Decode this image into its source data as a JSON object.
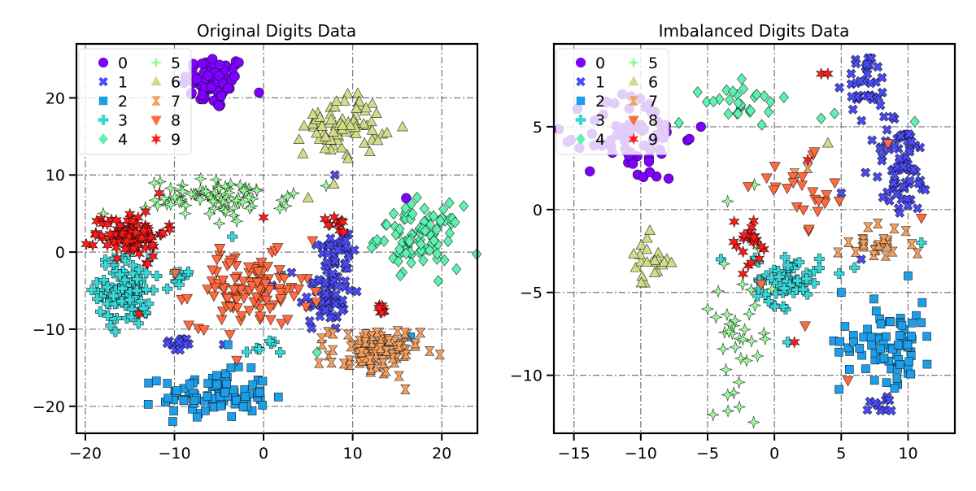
{
  "chart_data": [
    {
      "type": "scatter",
      "title": "Original Digits Data",
      "xlabel": "",
      "ylabel": "",
      "xlim": [
        -21,
        24
      ],
      "ylim": [
        -23.5,
        27
      ],
      "xticks": [
        -20,
        -10,
        0,
        10,
        20
      ],
      "yticks": [
        -20,
        -10,
        0,
        10,
        20
      ],
      "xtick_labels": [
        "−20",
        "−10",
        "0",
        "10",
        "20"
      ],
      "ytick_labels": [
        "−20",
        "−10",
        "0",
        "10",
        "20"
      ],
      "grid": true,
      "legend": {
        "placement": "top-left",
        "columns": 2
      },
      "series": [
        {
          "name": "0",
          "marker": "circle",
          "color": "#7f00ff",
          "clusters": [
            {
              "x": -5.5,
              "y": 22.0,
              "sx": 1.8,
              "sy": 1.8,
              "n": 70
            }
          ],
          "points": [
            [
              16,
              7
            ]
          ]
        },
        {
          "name": "1",
          "marker": "x",
          "color": "#4b4bf4",
          "clusters": [
            {
              "x": 7.0,
              "y": -5.5,
              "sx": 1.5,
              "sy": 2.5,
              "n": 60
            },
            {
              "x": 8.5,
              "y": 0.5,
              "sx": 1.2,
              "sy": 1.5,
              "n": 30
            },
            {
              "x": -9.5,
              "y": -12.0,
              "sx": 0.8,
              "sy": 0.5,
              "n": 12
            }
          ],
          "points": [
            [
              8,
              10
            ],
            [
              -4.5,
              -12
            ]
          ]
        },
        {
          "name": "2",
          "marker": "square",
          "color": "#1e9ee8",
          "clusters": [
            {
              "x": -5.5,
              "y": -18.5,
              "sx": 3.0,
              "sy": 1.5,
              "n": 90
            }
          ],
          "points": [
            [
              2,
              -3
            ],
            [
              16.5,
              -11
            ],
            [
              -4,
              -12
            ]
          ]
        },
        {
          "name": "3",
          "marker": "plus",
          "color": "#38d8d8",
          "clusters": [
            {
              "x": -15.5,
              "y": -5.0,
              "sx": 1.5,
              "sy": 2.3,
              "n": 100
            },
            {
              "x": -9.5,
              "y": -3.5,
              "sx": 0.8,
              "sy": 0.7,
              "n": 10
            },
            {
              "x": 0.0,
              "y": -12.5,
              "sx": 1.0,
              "sy": 0.6,
              "n": 8
            }
          ],
          "points": [
            [
              -3.5,
              2
            ]
          ]
        },
        {
          "name": "4",
          "marker": "diamond",
          "color": "#5ef2b0",
          "clusters": [
            {
              "x": 17.5,
              "y": 2.0,
              "sx": 2.3,
              "sy": 2.0,
              "n": 95
            }
          ],
          "points": [
            [
              6,
              -13
            ]
          ]
        },
        {
          "name": "5",
          "marker": "star4",
          "color": "#9cfb9c",
          "clusters": [
            {
              "x": -5.0,
              "y": 7.0,
              "sx": 4.0,
              "sy": 1.2,
              "n": 80
            }
          ],
          "points": [
            [
              -18,
              5
            ],
            [
              -3,
              4
            ]
          ]
        },
        {
          "name": "6",
          "marker": "triangle-up",
          "color": "#d2dc88",
          "clusters": [
            {
              "x": 9.0,
              "y": 16.5,
              "sx": 2.2,
              "sy": 2.0,
              "n": 75
            }
          ],
          "points": [
            [
              5,
              7
            ]
          ]
        },
        {
          "name": "7",
          "marker": "hourglass",
          "color": "#f4a060",
          "clusters": [
            {
              "x": 12.5,
              "y": -13.0,
              "sx": 2.5,
              "sy": 1.6,
              "n": 90
            }
          ],
          "points": [
            [
              13.5,
              -7.5
            ]
          ]
        },
        {
          "name": "8",
          "marker": "triangle-down",
          "color": "#ff6a40",
          "clusters": [
            {
              "x": -1.5,
              "y": -5.0,
              "sx": 3.3,
              "sy": 2.3,
              "n": 110
            }
          ],
          "points": [
            [
              5.5,
              1.5
            ],
            [
              -3,
              -14
            ]
          ]
        },
        {
          "name": "9",
          "marker": "star",
          "color": "#ff1a1a",
          "clusters": [
            {
              "x": -15.0,
              "y": 2.5,
              "sx": 2.0,
              "sy": 1.5,
              "n": 90
            },
            {
              "x": 8.5,
              "y": 3.5,
              "sx": 0.7,
              "sy": 0.6,
              "n": 10
            },
            {
              "x": 13.0,
              "y": -7.5,
              "sx": 0.4,
              "sy": 0.4,
              "n": 6
            }
          ],
          "points": [
            [
              0,
              4.5
            ],
            [
              -13,
              -1.5
            ],
            [
              -14,
              -8
            ]
          ]
        }
      ]
    },
    {
      "type": "scatter",
      "title": "Imbalanced Digits Data",
      "xlabel": "",
      "ylabel": "",
      "xlim": [
        -16.5,
        13.5
      ],
      "ylim": [
        -13.5,
        10
      ],
      "xticks": [
        -15,
        -10,
        -5,
        0,
        5,
        10
      ],
      "yticks": [
        -10,
        -5,
        0,
        5
      ],
      "xtick_labels": [
        "−15",
        "−10",
        "−5",
        "0",
        "5",
        "10"
      ],
      "ytick_labels": [
        "−10",
        "−5",
        "0",
        "5"
      ],
      "grid": true,
      "legend": {
        "placement": "top-left",
        "columns": 2
      },
      "series": [
        {
          "name": "0",
          "marker": "circle",
          "color": "#7f00ff",
          "clusters": [
            {
              "x": -10.5,
              "y": 4.5,
              "sx": 1.8,
              "sy": 1.4,
              "n": 75
            }
          ],
          "points": [
            [
              -5.5,
              5
            ]
          ]
        },
        {
          "name": "1",
          "marker": "x",
          "color": "#4b4bf4",
          "clusters": [
            {
              "x": 9.5,
              "y": 2.5,
              "sx": 1.1,
              "sy": 1.5,
              "n": 70
            },
            {
              "x": 7.0,
              "y": 7.5,
              "sx": 0.8,
              "sy": 1.0,
              "n": 35
            },
            {
              "x": 8.0,
              "y": -11.8,
              "sx": 0.6,
              "sy": 0.3,
              "n": 10
            }
          ],
          "points": [
            [
              5,
              1
            ],
            [
              6.5,
              -3
            ]
          ]
        },
        {
          "name": "2",
          "marker": "square",
          "color": "#1e9ee8",
          "clusters": [
            {
              "x": 8.5,
              "y": -8.0,
              "sx": 1.8,
              "sy": 1.2,
              "n": 75
            }
          ],
          "points": [
            [
              10,
              -4
            ],
            [
              5,
              -5
            ]
          ]
        },
        {
          "name": "3",
          "marker": "plus",
          "color": "#38d8d8",
          "clusters": [
            {
              "x": 1.0,
              "y": -4.2,
              "sx": 1.2,
              "sy": 0.8,
              "n": 60
            }
          ],
          "points": [
            [
              1,
              -8
            ],
            [
              -4,
              -3
            ],
            [
              6,
              -3.5
            ],
            [
              11,
              -2
            ]
          ]
        },
        {
          "name": "4",
          "marker": "diamond",
          "color": "#5ef2b0",
          "clusters": [
            {
              "x": -2.0,
              "y": 6.5,
              "sx": 1.6,
              "sy": 0.6,
              "n": 28
            }
          ],
          "points": [
            [
              10.5,
              5.3
            ],
            [
              3.5,
              5.5
            ],
            [
              4.5,
              5.8
            ]
          ]
        },
        {
          "name": "5",
          "marker": "star4",
          "color": "#9cfb9c",
          "clusters": [
            {
              "x": -2.5,
              "y": -7.5,
              "sx": 1.2,
              "sy": 2.0,
              "n": 35
            }
          ],
          "points": [
            [
              -3.5,
              0.5
            ],
            [
              -1.5,
              1.5
            ],
            [
              -5,
              -6
            ]
          ]
        },
        {
          "name": "6",
          "marker": "triangle-up",
          "color": "#d2dc88",
          "clusters": [
            {
              "x": -9.5,
              "y": -3.2,
              "sx": 0.8,
              "sy": 0.8,
              "n": 22
            }
          ],
          "points": [
            [
              4,
              4
            ]
          ]
        },
        {
          "name": "7",
          "marker": "hourglass",
          "color": "#f4a060",
          "clusters": [
            {
              "x": 7.5,
              "y": -2.0,
              "sx": 1.4,
              "sy": 0.5,
              "n": 26
            }
          ],
          "points": [
            [
              2.5,
              2.5
            ],
            [
              1.5,
              2.2
            ]
          ]
        },
        {
          "name": "8",
          "marker": "triangle-down",
          "color": "#ff6a40",
          "clusters": [
            {
              "x": 2.5,
              "y": 0.8,
              "sx": 2.0,
              "sy": 1.0,
              "n": 24
            }
          ],
          "points": [
            [
              8.5,
              4
            ],
            [
              11,
              -0.5
            ],
            [
              2.3,
              -7
            ],
            [
              5.5,
              -10.3
            ],
            [
              -1,
              -4.5
            ],
            [
              3,
              3.5
            ]
          ]
        },
        {
          "name": "9",
          "marker": "star",
          "color": "#ff1a1a",
          "clusters": [
            {
              "x": -2.0,
              "y": -2.0,
              "sx": 0.8,
              "sy": 0.8,
              "n": 22
            }
          ],
          "points": [
            [
              3.5,
              8.2
            ],
            [
              4,
              8.2
            ],
            [
              1.5,
              -8
            ],
            [
              2.5,
              3
            ]
          ]
        }
      ]
    }
  ]
}
